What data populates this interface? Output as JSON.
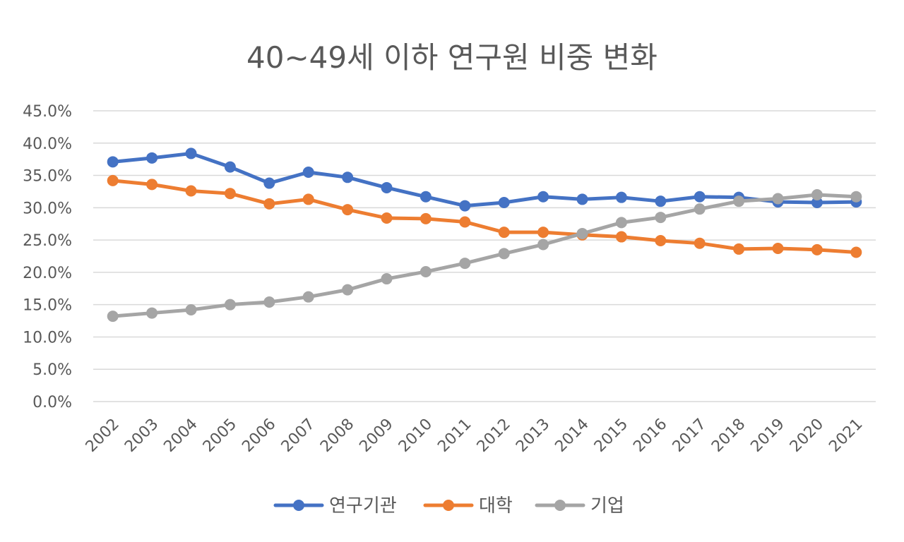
{
  "chart_data": {
    "type": "line",
    "title": "40~49세 이하 연구원 비중 변화",
    "xlabel": "",
    "ylabel": "",
    "ylim": [
      0,
      45
    ],
    "y_ticks": [
      "0.0%",
      "5.0%",
      "10.0%",
      "15.0%",
      "20.0%",
      "25.0%",
      "30.0%",
      "35.0%",
      "40.0%",
      "45.0%"
    ],
    "grid": true,
    "legend_position": "bottom",
    "categories": [
      "2002",
      "2003",
      "2004",
      "2005",
      "2006",
      "2007",
      "2008",
      "2009",
      "2010",
      "2011",
      "2012",
      "2013",
      "2014",
      "2015",
      "2016",
      "2017",
      "2018",
      "2019",
      "2020",
      "2021"
    ],
    "series": [
      {
        "name": "연구기관",
        "color": "#4472C4",
        "values": [
          37.1,
          37.7,
          38.4,
          36.3,
          33.8,
          35.5,
          34.7,
          33.1,
          31.7,
          30.3,
          30.8,
          31.7,
          31.3,
          31.6,
          31.0,
          31.7,
          31.6,
          30.9,
          30.8,
          30.9
        ]
      },
      {
        "name": "대학",
        "color": "#ED7D31",
        "values": [
          34.2,
          33.6,
          32.6,
          32.2,
          30.6,
          31.3,
          29.7,
          28.4,
          28.3,
          27.8,
          26.2,
          26.2,
          25.8,
          25.5,
          24.9,
          24.5,
          23.6,
          23.7,
          23.5,
          23.1
        ]
      },
      {
        "name": "기업",
        "color": "#A5A5A5",
        "values": [
          13.2,
          13.7,
          14.2,
          15.0,
          15.4,
          16.2,
          17.3,
          19.0,
          20.1,
          21.4,
          22.9,
          24.3,
          26.0,
          27.7,
          28.5,
          29.8,
          31.0,
          31.4,
          32.0,
          31.7
        ]
      }
    ]
  }
}
